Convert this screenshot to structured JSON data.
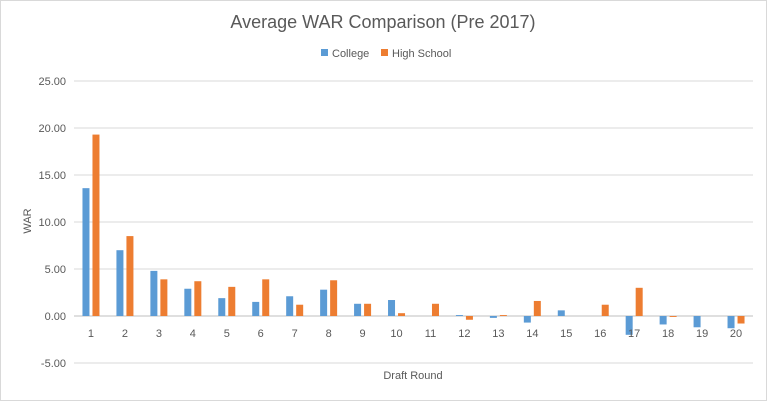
{
  "chart_data": {
    "type": "bar",
    "title": "Average WAR Comparison (Pre 2017)",
    "xlabel": "Draft Round",
    "ylabel": "WAR",
    "categories": [
      "1",
      "2",
      "3",
      "4",
      "5",
      "6",
      "7",
      "8",
      "9",
      "10",
      "11",
      "12",
      "13",
      "14",
      "15",
      "16",
      "17",
      "18",
      "19",
      "20"
    ],
    "series": [
      {
        "name": "College",
        "color": "#5b9bd5",
        "values": [
          13.6,
          7.0,
          4.8,
          2.9,
          1.9,
          1.5,
          2.1,
          2.8,
          1.3,
          1.7,
          0.0,
          0.1,
          -0.2,
          -0.7,
          0.6,
          0.0,
          -2.0,
          -0.9,
          -1.2,
          -1.3
        ]
      },
      {
        "name": "High School",
        "color": "#ed7d31",
        "values": [
          19.3,
          8.5,
          3.9,
          3.7,
          3.1,
          3.9,
          1.2,
          3.8,
          1.3,
          0.3,
          1.3,
          -0.4,
          0.1,
          1.6,
          0.0,
          1.2,
          3.0,
          -0.1,
          0.0,
          -0.8
        ]
      }
    ],
    "ylim": [
      -5,
      25
    ],
    "yticks": [
      "-5.00",
      "0.00",
      "5.00",
      "10.00",
      "15.00",
      "20.00",
      "25.00"
    ],
    "grid": true,
    "legend_position": "top"
  }
}
